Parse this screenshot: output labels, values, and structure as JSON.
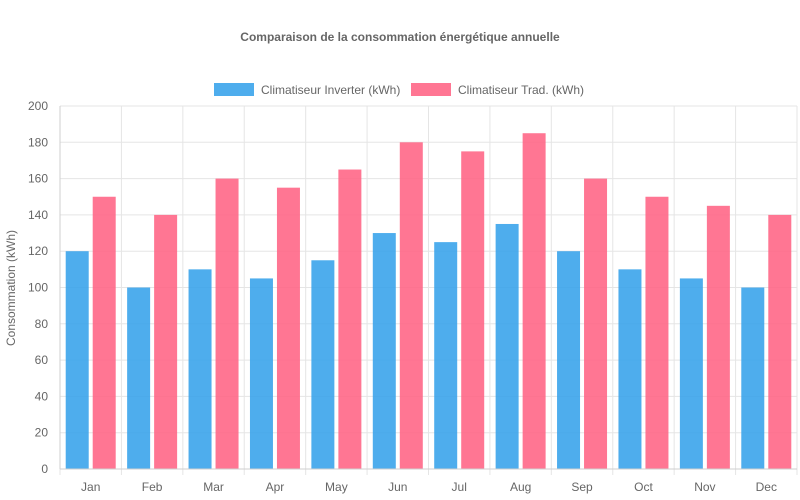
{
  "chart_data": {
    "type": "bar",
    "title": "Comparaison de la consommation énergétique annuelle",
    "xlabel": "",
    "ylabel": "Consommation (kWh)",
    "ylim": [
      0,
      200
    ],
    "yticks": [
      0,
      20,
      40,
      60,
      80,
      100,
      120,
      140,
      160,
      180,
      200
    ],
    "grid": true,
    "legend_position": "top",
    "categories": [
      "Jan",
      "Feb",
      "Mar",
      "Apr",
      "May",
      "Jun",
      "Jul",
      "Aug",
      "Sep",
      "Oct",
      "Nov",
      "Dec"
    ],
    "series": [
      {
        "name": "Climatiseur Inverter (kWh)",
        "color": "#36a2eb",
        "values": [
          120,
          100,
          110,
          105,
          115,
          130,
          125,
          135,
          120,
          110,
          105,
          100
        ]
      },
      {
        "name": "Climatiseur Trad. (kWh)",
        "color": "#ff6384",
        "values": [
          150,
          140,
          160,
          155,
          165,
          180,
          175,
          185,
          160,
          150,
          145,
          140
        ]
      }
    ]
  }
}
